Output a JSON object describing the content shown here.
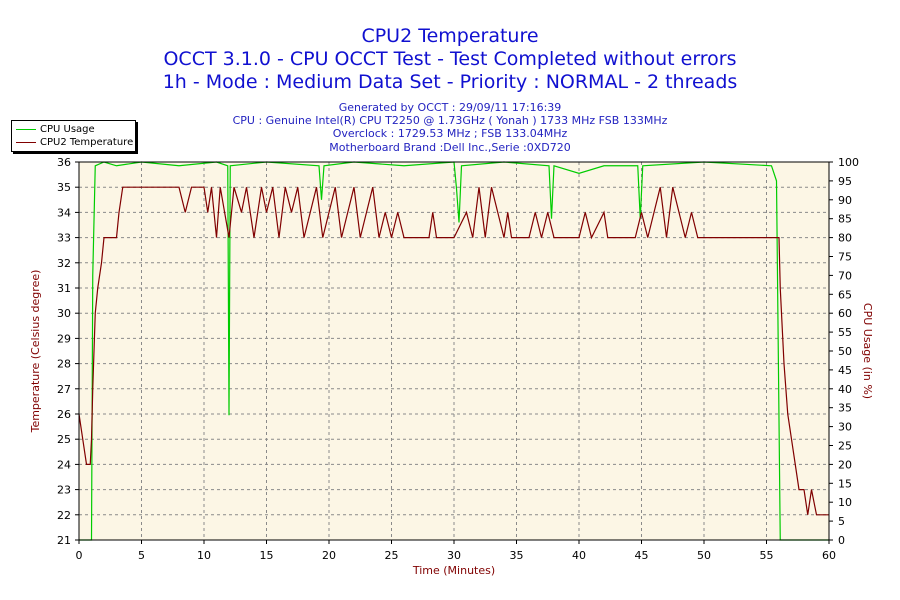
{
  "header": {
    "title": "CPU2 Temperature",
    "subtitle1": "OCCT 3.1.0 - CPU OCCT Test - Test Completed without errors",
    "subtitle2": "1h - Mode : Medium Data Set - Priority : NORMAL - 2 threads"
  },
  "info": {
    "generated": "Generated by OCCT : 29/09/11 17:16:39",
    "cpu": "CPU : Genuine Intel(R) CPU T2250 @ 1.73GHz ( Yonah ) 1733 MHz FSB 133MHz",
    "overclock": "Overclock : 1729.53 MHz ; FSB 133.04MHz",
    "motherboard": "Motherboard Brand :Dell Inc.,Serie :0XD720"
  },
  "colors": {
    "plot_bg": "#fcf6e5",
    "grid": "#8a8a8a",
    "temp_series": "#800000",
    "usage_series": "#00cc00",
    "axis_label": "#800000",
    "title": "#1010d0"
  },
  "chart_data": {
    "type": "line",
    "title": "CPU2 Temperature",
    "xlabel": "Time (Minutes)",
    "ylabel_left": "Temperature (Celsius degree)",
    "ylabel_right": "CPU Usage (in %)",
    "xlim": [
      0,
      60
    ],
    "ylim_left": [
      21,
      36
    ],
    "ylim_right": [
      0,
      100
    ],
    "xticks": [
      "0",
      "5",
      "10",
      "15",
      "20",
      "25",
      "30",
      "35",
      "40",
      "45",
      "50",
      "55",
      "60"
    ],
    "yticks_left": [
      "21",
      "22",
      "23",
      "24",
      "25",
      "26",
      "27",
      "28",
      "29",
      "30",
      "31",
      "32",
      "33",
      "34",
      "35",
      "36"
    ],
    "yticks_right": [
      "0",
      "5",
      "10",
      "15",
      "20",
      "25",
      "30",
      "35",
      "40",
      "45",
      "50",
      "55",
      "60",
      "65",
      "70",
      "75",
      "80",
      "85",
      "90",
      "95",
      "100"
    ],
    "grid": true,
    "legend_position": "top-left",
    "series": [
      {
        "name": "CPU Usage",
        "axis": "right",
        "points": [
          [
            0,
            0
          ],
          [
            1,
            0
          ],
          [
            1.1,
            70
          ],
          [
            1.3,
            99
          ],
          [
            2,
            100
          ],
          [
            3,
            99
          ],
          [
            5,
            100
          ],
          [
            8,
            99
          ],
          [
            11,
            100
          ],
          [
            11.9,
            99
          ],
          [
            12.0,
            33
          ],
          [
            12.1,
            99
          ],
          [
            15,
            100
          ],
          [
            19.2,
            99
          ],
          [
            19.4,
            90
          ],
          [
            19.6,
            99
          ],
          [
            22,
            100
          ],
          [
            26,
            99
          ],
          [
            30,
            100
          ],
          [
            30.2,
            93
          ],
          [
            30.4,
            84
          ],
          [
            30.6,
            99
          ],
          [
            34,
            100
          ],
          [
            37.6,
            99
          ],
          [
            37.8,
            85
          ],
          [
            38,
            99
          ],
          [
            40,
            97
          ],
          [
            42,
            99
          ],
          [
            44.7,
            99
          ],
          [
            44.9,
            85
          ],
          [
            45.1,
            99
          ],
          [
            50,
            100
          ],
          [
            55.4,
            99
          ],
          [
            55.8,
            95
          ],
          [
            56.1,
            0
          ],
          [
            60,
            0
          ]
        ]
      },
      {
        "name": "CPU2 Temperature",
        "axis": "left",
        "points": [
          [
            0,
            26
          ],
          [
            0.3,
            25
          ],
          [
            0.6,
            24
          ],
          [
            0.9,
            24
          ],
          [
            1,
            25
          ],
          [
            1.1,
            27
          ],
          [
            1.3,
            30
          ],
          [
            1.5,
            31
          ],
          [
            1.8,
            32
          ],
          [
            2,
            33
          ],
          [
            3,
            33
          ],
          [
            3.2,
            34
          ],
          [
            3.5,
            35
          ],
          [
            8,
            35
          ],
          [
            8.5,
            34
          ],
          [
            9,
            35
          ],
          [
            10,
            35
          ],
          [
            10.3,
            34
          ],
          [
            10.6,
            35
          ],
          [
            11,
            33
          ],
          [
            11.3,
            35
          ],
          [
            12,
            33
          ],
          [
            12.4,
            35
          ],
          [
            13,
            34
          ],
          [
            13.4,
            35
          ],
          [
            14,
            33
          ],
          [
            14.6,
            35
          ],
          [
            15,
            34
          ],
          [
            15.5,
            35
          ],
          [
            16,
            33
          ],
          [
            16.5,
            35
          ],
          [
            17,
            34
          ],
          [
            17.5,
            35
          ],
          [
            18,
            33
          ],
          [
            18.5,
            34
          ],
          [
            19,
            35
          ],
          [
            19.5,
            33
          ],
          [
            20,
            34
          ],
          [
            20.5,
            35
          ],
          [
            21,
            33
          ],
          [
            21.5,
            34
          ],
          [
            22,
            35
          ],
          [
            22.5,
            33
          ],
          [
            23,
            34
          ],
          [
            23.5,
            35
          ],
          [
            24,
            33
          ],
          [
            24.5,
            34
          ],
          [
            25,
            33
          ],
          [
            25.5,
            34
          ],
          [
            26,
            33
          ],
          [
            28,
            33
          ],
          [
            28.3,
            34
          ],
          [
            28.6,
            33
          ],
          [
            30,
            33
          ],
          [
            31,
            34
          ],
          [
            31.5,
            33
          ],
          [
            32,
            35
          ],
          [
            32.5,
            33
          ],
          [
            33,
            35
          ],
          [
            33.5,
            34
          ],
          [
            34,
            33
          ],
          [
            34.3,
            34
          ],
          [
            34.6,
            33
          ],
          [
            36,
            33
          ],
          [
            36.5,
            34
          ],
          [
            37,
            33
          ],
          [
            37.5,
            34
          ],
          [
            38,
            33
          ],
          [
            40,
            33
          ],
          [
            40.5,
            34
          ],
          [
            41,
            33
          ],
          [
            42,
            34
          ],
          [
            42.3,
            33
          ],
          [
            44.5,
            33
          ],
          [
            45,
            34
          ],
          [
            45.5,
            33
          ],
          [
            46,
            34
          ],
          [
            46.5,
            35
          ],
          [
            47,
            33
          ],
          [
            47.5,
            35
          ],
          [
            48,
            34
          ],
          [
            48.5,
            33
          ],
          [
            49,
            34
          ],
          [
            49.5,
            33
          ],
          [
            50,
            33
          ],
          [
            55,
            33
          ],
          [
            56,
            33
          ],
          [
            56.1,
            31
          ],
          [
            56.4,
            28
          ],
          [
            56.7,
            26
          ],
          [
            57,
            25
          ],
          [
            57.3,
            24
          ],
          [
            57.6,
            23
          ],
          [
            58,
            23
          ],
          [
            58.3,
            22
          ],
          [
            58.6,
            23
          ],
          [
            59,
            22
          ],
          [
            59.5,
            22
          ],
          [
            60,
            22
          ]
        ]
      }
    ]
  }
}
